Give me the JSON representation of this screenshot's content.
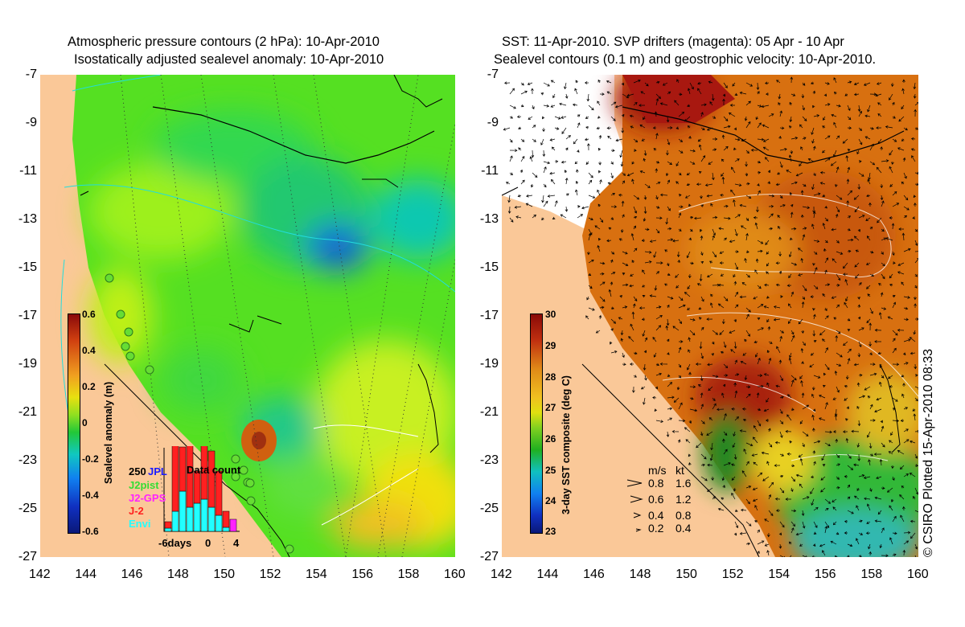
{
  "left_panel": {
    "title_line1": "Atmospheric pressure contours (2 hPa): 10-Apr-2010",
    "title_line2": "Isostatically adjusted sealevel anomaly: 10-Apr-2010",
    "colorbar": {
      "label": "Sealevel anomaly (m)",
      "ticks": [
        "0.6",
        "0.4",
        "0.2",
        "0",
        "-0.2",
        "-0.4",
        "-0.6"
      ]
    },
    "data_count": {
      "title": "Data count",
      "max_label": "250",
      "series": [
        {
          "name": "JPL",
          "color": "#1a1aff"
        },
        {
          "name": "J2pist",
          "color": "#33dd33"
        },
        {
          "name": "J2-GPS",
          "color": "#ff22ff"
        },
        {
          "name": "J-2",
          "color": "#ff2020"
        },
        {
          "name": "Envi",
          "color": "#22ffff"
        }
      ],
      "x_labels": [
        "-6days",
        "0",
        "4"
      ],
      "bars": [
        {
          "day": -6,
          "red": 0.08,
          "cyan": 0.04
        },
        {
          "day": -5,
          "red": 0.85,
          "cyan": 0.25
        },
        {
          "day": -4,
          "red": 0.55,
          "cyan": 0.5
        },
        {
          "day": -3,
          "red": 0.85,
          "cyan": 0.3
        },
        {
          "day": -2,
          "red": 0.4,
          "cyan": 0.35
        },
        {
          "day": -1,
          "red": 0.95,
          "cyan": 0.4,
          "green": 0.08
        },
        {
          "day": 0,
          "red": 0.7,
          "cyan": 0.3
        },
        {
          "day": 1,
          "red": 0.55,
          "cyan": 0.2
        },
        {
          "day": 2,
          "red": 0.2,
          "cyan": 0.05
        },
        {
          "day": 3,
          "magenta": 0.15
        }
      ]
    }
  },
  "right_panel": {
    "title_line1": "SST: 11-Apr-2010. SVP drifters (magenta): 05 Apr - 10 Apr",
    "title_line2": "Sealevel contours (0.1 m) and geostrophic velocity: 10-Apr-2010.",
    "colorbar": {
      "label": "3-day SST composite (deg C)",
      "ticks": [
        "30",
        "29",
        "28",
        "27",
        "26",
        "25",
        "24",
        "23"
      ]
    },
    "velocity_legend": {
      "header_ms": "m/s",
      "header_kt": "kt",
      "rows": [
        {
          "ms": "0.8",
          "kt": "1.6"
        },
        {
          "ms": "0.6",
          "kt": "1.2"
        },
        {
          "ms": "0.4",
          "kt": "0.8"
        },
        {
          "ms": "0.2",
          "kt": "0.4"
        }
      ]
    },
    "credit": "© CSIRO Plotted 15-Apr-2010 08:33"
  },
  "axes": {
    "y_labels": [
      "-7",
      "-9",
      "-11",
      "-13",
      "-15",
      "-17",
      "-19",
      "-21",
      "-23",
      "-25",
      "-27"
    ],
    "x_labels": [
      "142",
      "144",
      "146",
      "148",
      "150",
      "152",
      "154",
      "156",
      "158",
      "160"
    ]
  }
}
